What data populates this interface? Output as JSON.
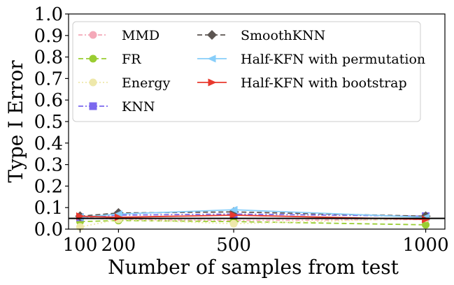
{
  "chart_data": {
    "type": "line",
    "xlabel": "Number of samples from test",
    "ylabel": "Type I Error",
    "x": [
      100,
      200,
      500,
      1000
    ],
    "x_ticks": [
      "100",
      "200",
      "500",
      "1000"
    ],
    "xlim": [
      70,
      1050
    ],
    "ylim": [
      0.0,
      1.0
    ],
    "y_ticks": [
      "0.0",
      "0.1",
      "0.2",
      "0.3",
      "0.4",
      "0.5",
      "0.6",
      "0.7",
      "0.8",
      "0.9",
      "1.0"
    ],
    "reference_line": 0.05,
    "reference_color": "#000000",
    "grid": false,
    "legend_position": "top",
    "series": [
      {
        "name": "MMD",
        "values": [
          0.055,
          0.045,
          0.04,
          0.045
        ],
        "color": "#f4a8b8",
        "marker": "circle",
        "dash": "6,3,2,3"
      },
      {
        "name": "FR",
        "values": [
          0.035,
          0.04,
          0.035,
          0.02
        ],
        "color": "#9acd32",
        "marker": "circle",
        "dash": "7,4"
      },
      {
        "name": "Energy",
        "values": [
          0.01,
          0.045,
          0.025,
          0.05
        ],
        "color": "#eee8aa",
        "marker": "circle",
        "dash": "2,3"
      },
      {
        "name": "KNN",
        "values": [
          0.055,
          0.065,
          0.07,
          0.06
        ],
        "color": "#7b68ee",
        "marker": "square",
        "dash": "7,3,2,3"
      },
      {
        "name": "SmoothKNN",
        "values": [
          0.06,
          0.075,
          0.08,
          0.06
        ],
        "color": "#5c5552",
        "marker": "diamond",
        "dash": "7,4"
      },
      {
        "name": "Half-KFN with permutation",
        "values": [
          0.055,
          0.07,
          0.09,
          0.055
        ],
        "color": "#87cefa",
        "marker": "triangle-left",
        "dash": ""
      },
      {
        "name": "Half-KFN with bootstrap",
        "values": [
          0.06,
          0.055,
          0.065,
          0.045
        ],
        "color": "#e8392e",
        "marker": "triangle-right",
        "dash": ""
      }
    ]
  }
}
